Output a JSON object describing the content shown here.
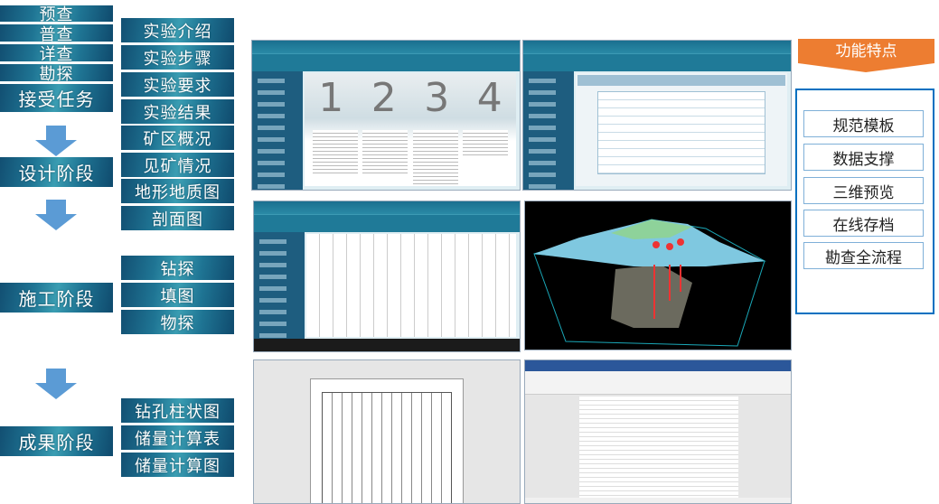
{
  "stages": {
    "items": [
      "预查",
      "普查",
      "详查",
      "勘探"
    ],
    "receive": "接受任务",
    "design": "设计阶段",
    "construction": "施工阶段",
    "results": "成果阶段"
  },
  "design_items": [
    "实验介绍",
    "实验步骤",
    "实验要求",
    "实验结果",
    "矿区概况",
    "见矿情况",
    "地形地质图",
    "剖面图"
  ],
  "construction_items": [
    "钻探",
    "填图",
    "物探"
  ],
  "result_items": [
    "钻孔柱状图",
    "储量计算表",
    "储量计算图"
  ],
  "screenshot1": {
    "digits": [
      "1",
      "2",
      "3",
      "4"
    ]
  },
  "features": {
    "title": "功能特点",
    "items": [
      "规范模板",
      "数据支撑",
      "三维预览",
      "在线存档",
      "勘查全流程"
    ]
  },
  "colors": {
    "tile": "#1f7594",
    "arrow": "#5b9bd5",
    "banner": "#ed7d31",
    "frame": "#0070c0"
  }
}
